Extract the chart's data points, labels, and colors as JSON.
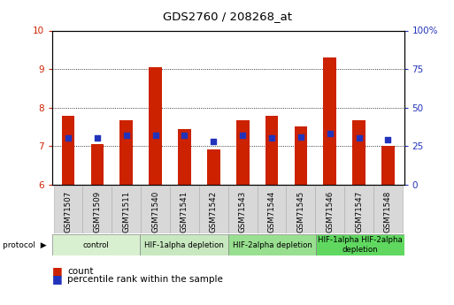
{
  "title": "GDS2760 / 208268_at",
  "samples": [
    "GSM71507",
    "GSM71509",
    "GSM71511",
    "GSM71540",
    "GSM71541",
    "GSM71542",
    "GSM71543",
    "GSM71544",
    "GSM71545",
    "GSM71546",
    "GSM71547",
    "GSM71548"
  ],
  "count_values": [
    7.78,
    7.05,
    7.68,
    9.05,
    7.45,
    6.92,
    7.68,
    7.78,
    7.5,
    9.3,
    7.68,
    7.0
  ],
  "percentile_values": [
    30,
    30,
    32,
    32,
    32,
    28,
    32,
    30,
    31,
    33,
    30,
    29
  ],
  "ylim_left": [
    6,
    10
  ],
  "ylim_right": [
    0,
    100
  ],
  "right_ticks": [
    0,
    25,
    50,
    75,
    100
  ],
  "right_tick_labels": [
    "0",
    "25",
    "50",
    "75",
    "100%"
  ],
  "left_ticks": [
    6,
    7,
    8,
    9,
    10
  ],
  "bar_color": "#cc2200",
  "dot_color": "#2233bb",
  "bar_width": 0.45,
  "groups": [
    {
      "label": "control",
      "start": 0,
      "end": 3,
      "color": "#d8f0d0"
    },
    {
      "label": "HIF-1alpha depletion",
      "start": 3,
      "end": 6,
      "color": "#c8e8c0"
    },
    {
      "label": "HIF-2alpha depletion",
      "start": 6,
      "end": 9,
      "color": "#98e090"
    },
    {
      "label": "HIF-1alpha HIF-2alpha\ndepletion",
      "start": 9,
      "end": 12,
      "color": "#60d860"
    }
  ],
  "legend_count_label": "count",
  "legend_percentile_label": "percentile rank within the sample",
  "ylabel_left_color": "#cc2200",
  "ylabel_right_color": "#2233bb",
  "bar_bottom": 6
}
